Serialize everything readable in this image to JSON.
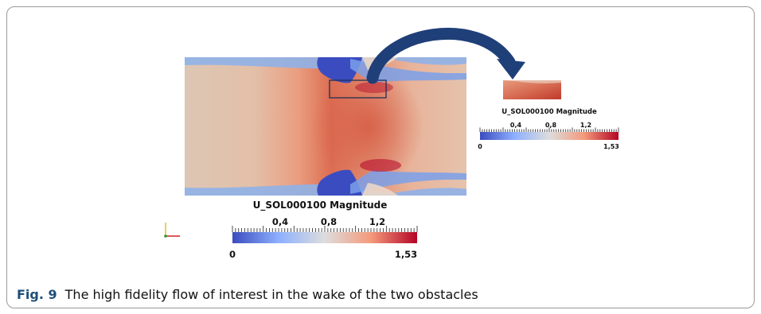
{
  "figure": {
    "caption_label": "Fig. 9",
    "caption_text": "The high fidelity flow of interest in the wake of the two obstacles"
  },
  "main_plot": {
    "colorbar_title": "U_SOL000100 Magnitude",
    "ticks_top": [
      "0,4",
      "0,8",
      "1,2"
    ],
    "min_label": "0",
    "max_label": "1,53"
  },
  "inset_plot": {
    "colorbar_title": "U_SOL000100 Magnitude",
    "ticks_top": [
      "0,4",
      "0,8",
      "1,2"
    ],
    "min_label": "0",
    "max_label": "1,53"
  },
  "colors": {
    "cool": "#3b4cc0",
    "neutral": "#dddddd",
    "warm": "#b40426",
    "caption_label": "#1f4e79",
    "arrow": "#1f3f78"
  }
}
